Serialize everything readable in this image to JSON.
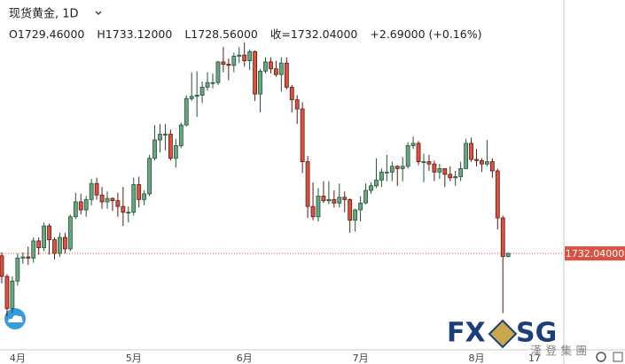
{
  "chart_data": {
    "type": "candlestick",
    "title": "现货黄金, 1D",
    "legend_items": [
      "O1729.46000",
      "H1733.12000",
      "L1728.56000",
      "收=1732.04000",
      "+2.69000 (+0.16%)"
    ],
    "categories": [
      null,
      null,
      null,
      "4月",
      null,
      null,
      null,
      null,
      null,
      null,
      null,
      null,
      null,
      null,
      null,
      null,
      null,
      null,
      null,
      null,
      null,
      null,
      null,
      null,
      null,
      "5月",
      null,
      null,
      null,
      null,
      null,
      null,
      null,
      null,
      null,
      null,
      null,
      null,
      null,
      null,
      null,
      null,
      null,
      null,
      null,
      null,
      "6月",
      null,
      null,
      null,
      null,
      null,
      null,
      null,
      null,
      null,
      null,
      null,
      null,
      null,
      null,
      null,
      null,
      null,
      null,
      null,
      null,
      null,
      "7月",
      null,
      null,
      null,
      null,
      null,
      null,
      null,
      null,
      null,
      null,
      null,
      null,
      null,
      null,
      null,
      null,
      null,
      null,
      null,
      null,
      null,
      "8月",
      null,
      null,
      null,
      null,
      null,
      null,
      null,
      null,
      null,
      null,
      "17",
      null,
      null,
      null,
      null,
      null
    ],
    "open": [
      1730,
      1712,
      1684,
      1708,
      1728,
      1729,
      1728,
      1743,
      1737,
      1756,
      1744,
      1732,
      1746,
      1736,
      1764,
      1777,
      1770,
      1779,
      1793,
      1783,
      1777,
      1780,
      1778,
      1773,
      1768,
      1768,
      1792,
      1779,
      1784,
      1815,
      1831,
      1836,
      1836,
      1815,
      1826,
      1844,
      1867,
      1869,
      1870,
      1877,
      1881,
      1881,
      1899,
      1897,
      1896,
      1904,
      1905,
      1900,
      1908,
      1871,
      1891,
      1899,
      1893,
      1888,
      1898,
      1877,
      1866,
      1858,
      1812,
      1773,
      1764,
      1782,
      1778,
      1779,
      1776,
      1781,
      1779,
      1761,
      1770,
      1776,
      1787,
      1791,
      1796,
      1803,
      1803,
      1808,
      1806,
      1808,
      1826,
      1828,
      1812,
      1812,
      1810,
      1803,
      1806,
      1801,
      1798,
      1799,
      1806,
      1828,
      1814,
      1813,
      1810,
      1812,
      1804,
      1763,
      1729.46,
      null,
      null,
      null,
      null,
      null,
      null,
      null,
      null,
      null,
      null
    ],
    "high": [
      1733,
      1714,
      1712,
      1732,
      1733,
      1738,
      1746,
      1746,
      1759,
      1758,
      1746,
      1750,
      1750,
      1766,
      1785,
      1784,
      1782,
      1797,
      1798,
      1790,
      1786,
      1781,
      1785,
      1790,
      1773,
      1798,
      1799,
      1787,
      1818,
      1844,
      1845,
      1845,
      1840,
      1832,
      1846,
      1870,
      1890,
      1891,
      1882,
      1890,
      1889,
      1900,
      1912,
      1902,
      1907,
      1912,
      1916,
      1910,
      1909,
      1893,
      1903,
      1903,
      1900,
      1903,
      1903,
      1879,
      1870,
      1864,
      1817,
      1794,
      1789,
      1795,
      1795,
      1787,
      1793,
      1786,
      1780,
      1771,
      1782,
      1793,
      1794,
      1815,
      1806,
      1818,
      1812,
      1809,
      1816,
      1829,
      1834,
      1830,
      1819,
      1818,
      1813,
      1810,
      1806,
      1808,
      1804,
      1812,
      1832,
      1833,
      1823,
      1815,
      1831,
      1815,
      1806,
      1765,
      1733.12,
      null,
      null,
      null,
      null,
      null,
      null,
      null,
      null,
      null,
      null
    ],
    "low": [
      1706,
      1677,
      1680,
      1704,
      1723,
      1722,
      1724,
      1731,
      1734,
      1731,
      1727,
      1729,
      1732,
      1734,
      1762,
      1766,
      1764,
      1774,
      1779,
      1771,
      1771,
      1769,
      1764,
      1756,
      1759,
      1765,
      1772,
      1774,
      1782,
      1813,
      1820,
      1822,
      1813,
      1807,
      1824,
      1843,
      1865,
      1851,
      1863,
      1874,
      1876,
      1879,
      1890,
      1883,
      1890,
      1898,
      1895,
      1892,
      1865,
      1855,
      1889,
      1889,
      1886,
      1873,
      1875,
      1855,
      1845,
      1802,
      1763,
      1761,
      1760,
      1776,
      1775,
      1772,
      1772,
      1768,
      1750,
      1751,
      1760,
      1775,
      1784,
      1789,
      1790,
      1795,
      1795,
      1791,
      1795,
      1806,
      1823,
      1809,
      1794,
      1804,
      1795,
      1797,
      1790,
      1795,
      1791,
      1795,
      1806,
      1812,
      1808,
      1803,
      1808,
      1798,
      1753,
      1680,
      1728.56,
      null,
      null,
      null,
      null,
      null,
      null,
      null,
      null,
      null,
      null
    ],
    "close": [
      1712,
      1684,
      1708,
      1728,
      1729,
      1728,
      1743,
      1737,
      1756,
      1744,
      1732,
      1746,
      1736,
      1764,
      1777,
      1770,
      1779,
      1793,
      1783,
      1777,
      1780,
      1778,
      1773,
      1768,
      1768,
      1792,
      1779,
      1784,
      1815,
      1831,
      1836,
      1836,
      1815,
      1826,
      1844,
      1867,
      1869,
      1870,
      1877,
      1881,
      1881,
      1899,
      1897,
      1896,
      1904,
      1905,
      1900,
      1908,
      1871,
      1891,
      1899,
      1893,
      1888,
      1898,
      1877,
      1866,
      1858,
      1812,
      1773,
      1764,
      1782,
      1778,
      1779,
      1776,
      1781,
      1779,
      1761,
      1770,
      1776,
      1787,
      1791,
      1796,
      1803,
      1803,
      1808,
      1806,
      1808,
      1826,
      1828,
      1812,
      1812,
      1810,
      1803,
      1806,
      1801,
      1798,
      1799,
      1806,
      1828,
      1814,
      1813,
      1810,
      1812,
      1804,
      1763,
      1729.35,
      1732.04,
      null,
      null,
      null,
      null,
      null,
      null,
      null,
      null,
      null,
      null
    ],
    "up_color": "#6ba583",
    "up_border": "#225437",
    "down_color": "#d75442",
    "down_border": "#5b1a13",
    "ylim": [
      1648,
      1953
    ],
    "last_price": {
      "value": 1732.04,
      "label": "1732.04000"
    },
    "watermark": {
      "brand_left": "FX",
      "brand_right": "SG",
      "subtitle": "漢 登 集 團"
    }
  }
}
